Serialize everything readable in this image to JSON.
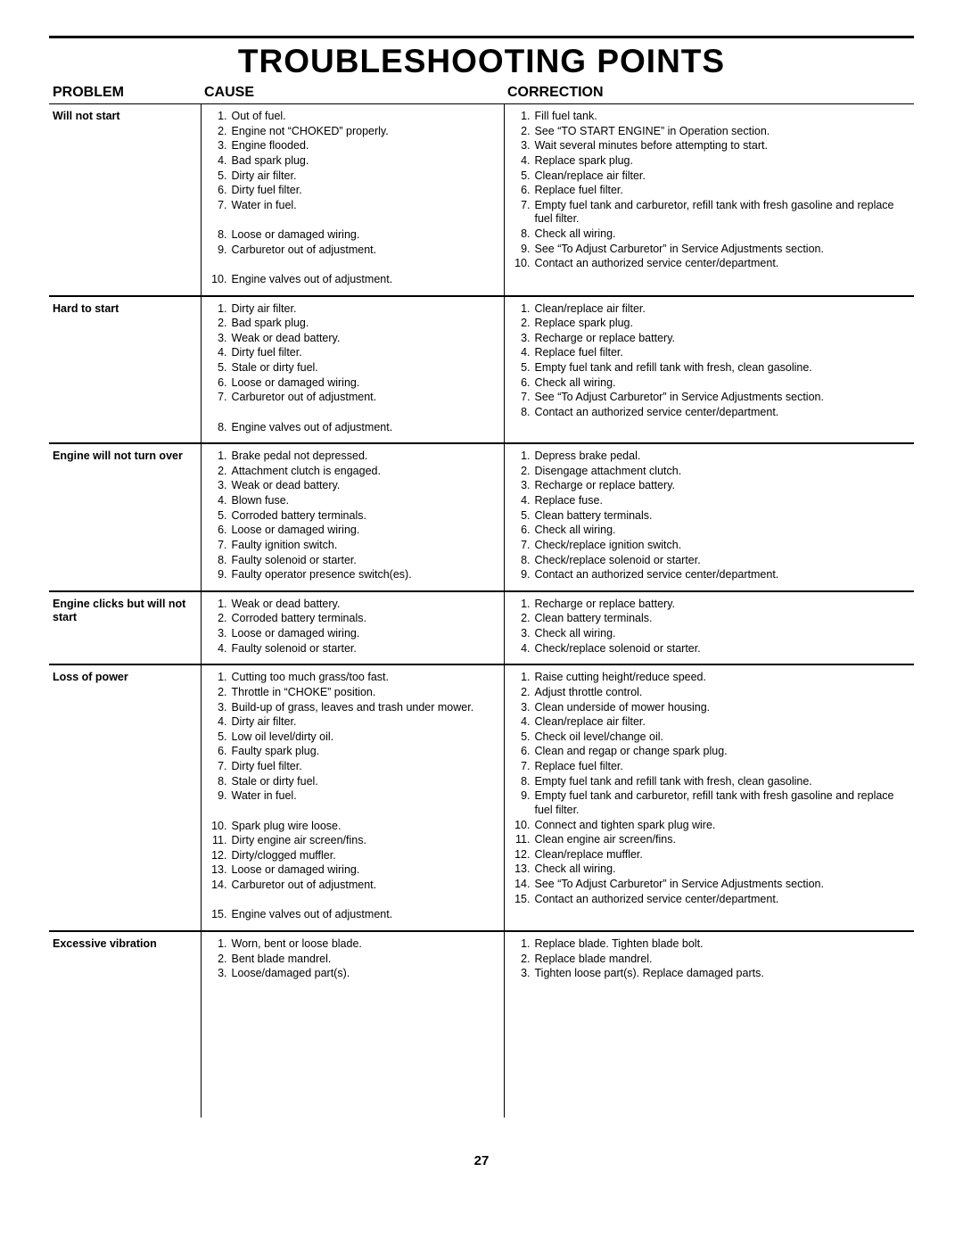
{
  "page": {
    "title": "TROUBLESHOOTING POINTS",
    "number": "27",
    "columns": {
      "problem": "PROBLEM",
      "cause": "CAUSE",
      "correction": "CORRECTION"
    }
  },
  "rows": [
    {
      "problem": "Will not start",
      "causes": [
        "Out of fuel.",
        "Engine not “CHOKED” properly.",
        "Engine flooded.",
        "Bad spark plug.",
        "Dirty air filter.",
        "Dirty fuel filter.",
        "Water in fuel.",
        "",
        "Loose or damaged wiring.",
        "Carburetor out of adjustment.",
        "",
        "Engine valves out of adjustment."
      ],
      "corrections": [
        "Fill fuel tank.",
        "See “TO START ENGINE” in Operation section.",
        "Wait several minutes before attempting to start.",
        "Replace spark plug.",
        "Clean/replace air filter.",
        "Replace fuel filter.",
        "Empty fuel tank and carburetor, refill tank with fresh gasoline and replace fuel filter.",
        "Check all wiring.",
        "See “To Adjust Carburetor” in Service Adjustments section.",
        "Contact an authorized service center/department."
      ]
    },
    {
      "problem": "Hard to start",
      "causes": [
        "Dirty air filter.",
        "Bad spark plug.",
        "Weak or dead battery.",
        "Dirty fuel filter.",
        "Stale or dirty fuel.",
        "Loose or damaged wiring.",
        "Carburetor out of adjustment.",
        "",
        "Engine valves out of adjustment."
      ],
      "corrections": [
        "Clean/replace air filter.",
        "Replace spark plug.",
        "Recharge or replace battery.",
        "Replace fuel filter.",
        "Empty fuel tank and refill tank with fresh, clean gasoline.",
        "Check all wiring.",
        "See “To Adjust Carburetor” in Service Adjustments section.",
        "Contact an authorized service center/department."
      ]
    },
    {
      "problem": "Engine will not turn over",
      "causes": [
        "Brake pedal not depressed.",
        "Attachment clutch is engaged.",
        "Weak or dead battery.",
        "Blown fuse.",
        "Corroded battery terminals.",
        "Loose or damaged wiring.",
        "Faulty ignition switch.",
        "Faulty solenoid or starter.",
        "Faulty operator presence switch(es)."
      ],
      "corrections": [
        "Depress brake pedal.",
        "Disengage attachment clutch.",
        "Recharge or replace battery.",
        "Replace fuse.",
        "Clean battery terminals.",
        "Check all wiring.",
        "Check/replace ignition switch.",
        "Check/replace solenoid or starter.",
        "Contact an authorized service center/department."
      ]
    },
    {
      "problem": "Engine clicks but will not start",
      "causes": [
        "Weak or dead battery.",
        "Corroded battery terminals.",
        "Loose or damaged wiring.",
        "Faulty solenoid or starter."
      ],
      "corrections": [
        "Recharge or replace battery.",
        "Clean battery terminals.",
        "Check all wiring.",
        "Check/replace solenoid or starter."
      ]
    },
    {
      "problem": "Loss of power",
      "causes": [
        "Cutting too much grass/too fast.",
        "Throttle in “CHOKE” position.",
        "Build-up of grass, leaves and trash under mower.",
        "Dirty air filter.",
        "Low oil level/dirty oil.",
        "Faulty spark plug.",
        "Dirty fuel filter.",
        "Stale or dirty fuel.",
        "Water in fuel.",
        "",
        "Spark plug wire loose.",
        "Dirty engine air screen/fins.",
        "Dirty/clogged muffler.",
        "Loose or damaged wiring.",
        "Carburetor out of adjustment.",
        "",
        "Engine valves out of adjustment."
      ],
      "corrections": [
        "Raise cutting height/reduce speed.",
        "Adjust throttle control.",
        "Clean underside of mower housing.",
        "Clean/replace air filter.",
        "Check oil level/change oil.",
        "Clean and regap or change spark plug.",
        "Replace fuel filter.",
        "Empty fuel tank and refill tank with fresh, clean gasoline.",
        "Empty fuel tank and carburetor, refill tank with fresh gasoline and replace fuel filter.",
        "Connect and tighten spark plug wire.",
        "Clean engine air screen/fins.",
        "Clean/replace muffler.",
        "Check all wiring.",
        "See “To Adjust Carburetor” in Service Adjustments section.",
        "Contact an authorized service center/department."
      ]
    },
    {
      "problem": "Excessive vibration",
      "causes": [
        "Worn, bent or loose blade.",
        "Bent blade mandrel.",
        "Loose/damaged part(s)."
      ],
      "corrections": [
        "Replace blade.  Tighten blade bolt.",
        "Replace blade mandrel.",
        "Tighten loose part(s).  Replace damaged parts."
      ]
    }
  ]
}
